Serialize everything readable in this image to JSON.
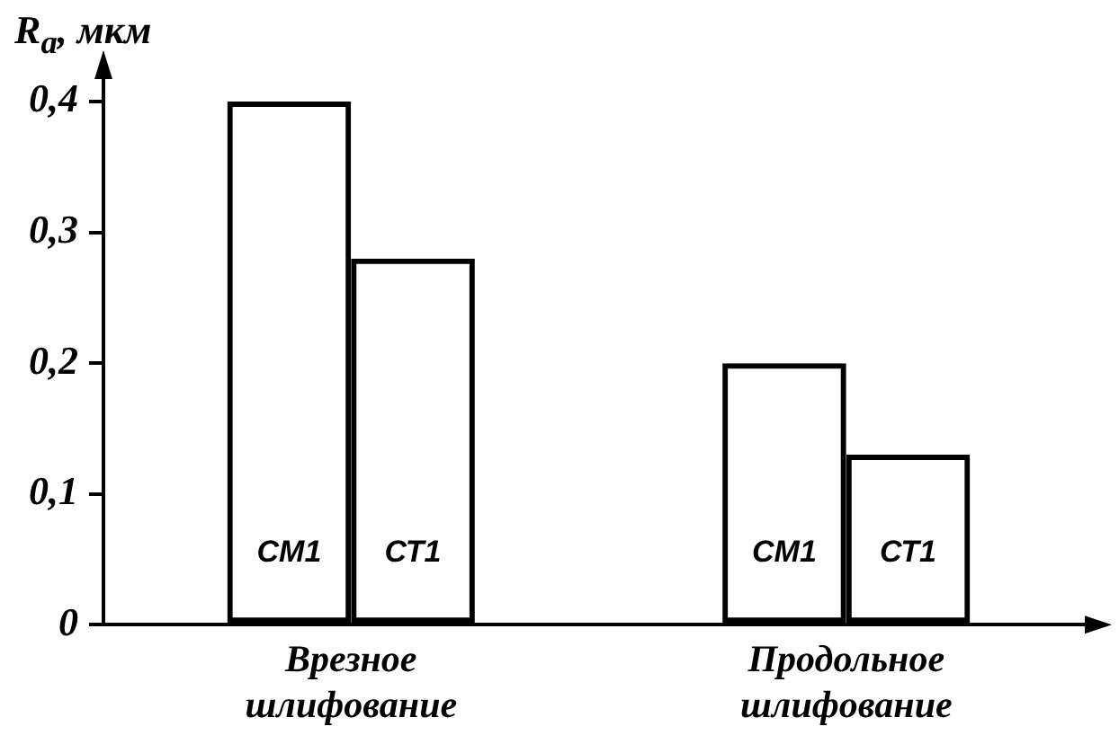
{
  "chart_data": {
    "type": "bar",
    "ylabel": "R$_{a}$, мкм",
    "categories": [
      "Врезное шлифование",
      "Продольное шлифование"
    ],
    "series": [
      {
        "name": "СМ1",
        "color": "#000000",
        "values": [
          0.4,
          0.2
        ]
      },
      {
        "name": "СТ1",
        "color": "#000000",
        "values": [
          0.28,
          0.13
        ]
      }
    ],
    "ylim": [
      0,
      0.42
    ],
    "yticks": [
      {
        "value": 0,
        "label": "0"
      },
      {
        "value": 0.1,
        "label": "0,1"
      },
      {
        "value": 0.2,
        "label": "0,2"
      },
      {
        "value": 0.3,
        "label": "0,3"
      },
      {
        "value": 0.4,
        "label": "0,4"
      }
    ],
    "grid": false
  }
}
